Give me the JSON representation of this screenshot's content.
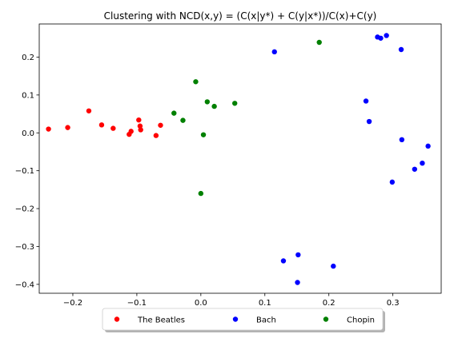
{
  "chart_data": {
    "type": "scatter",
    "title": "Clustering with NCD(x,y) = (C(x|y*) + C(y|x*))/C(x)+C(y)",
    "xlabel": "",
    "ylabel": "",
    "xlim": [
      -0.2525,
      0.3755
    ],
    "ylim": [
      -0.4235,
      0.2875
    ],
    "xticks": [
      -0.2,
      -0.1,
      0.0,
      0.1,
      0.2,
      0.3
    ],
    "xtick_labels": [
      "−0.2",
      "−0.1",
      "0.0",
      "0.1",
      "0.2",
      "0.3"
    ],
    "yticks": [
      -0.4,
      -0.3,
      -0.2,
      -0.1,
      0.0,
      0.1,
      0.2
    ],
    "ytick_labels": [
      "−0.4",
      "−0.3",
      "−0.2",
      "−0.1",
      "0.0",
      "0.1",
      "0.2"
    ],
    "grid": false,
    "legend_placement": "bottom-center",
    "series": [
      {
        "name": "The Beatles",
        "color": "#ff0000",
        "points": [
          [
            -0.238,
            0.01
          ],
          [
            -0.208,
            0.014
          ],
          [
            -0.175,
            0.058
          ],
          [
            -0.155,
            0.021
          ],
          [
            -0.137,
            0.012
          ],
          [
            -0.112,
            -0.004
          ],
          [
            -0.109,
            0.004
          ],
          [
            -0.097,
            0.034
          ],
          [
            -0.095,
            0.018
          ],
          [
            -0.094,
            0.008
          ],
          [
            -0.07,
            -0.007
          ],
          [
            -0.063,
            0.02
          ]
        ]
      },
      {
        "name": "Bach",
        "color": "#0000ff",
        "points": [
          [
            0.115,
            0.214
          ],
          [
            0.276,
            0.253
          ],
          [
            0.281,
            0.25
          ],
          [
            0.29,
            0.257
          ],
          [
            0.313,
            0.22
          ],
          [
            0.258,
            0.084
          ],
          [
            0.263,
            0.03
          ],
          [
            0.314,
            -0.018
          ],
          [
            0.355,
            -0.035
          ],
          [
            0.346,
            -0.08
          ],
          [
            0.334,
            -0.096
          ],
          [
            0.299,
            -0.13
          ],
          [
            0.129,
            -0.338
          ],
          [
            0.152,
            -0.322
          ],
          [
            0.207,
            -0.352
          ],
          [
            0.151,
            -0.395
          ]
        ]
      },
      {
        "name": "Chopin",
        "color": "#008000",
        "points": [
          [
            -0.008,
            0.135
          ],
          [
            0.185,
            0.239
          ],
          [
            0.01,
            0.082
          ],
          [
            0.021,
            0.07
          ],
          [
            0.053,
            0.078
          ],
          [
            -0.042,
            0.052
          ],
          [
            -0.028,
            0.033
          ],
          [
            0.004,
            -0.005
          ],
          [
            0.0,
            -0.16
          ]
        ]
      }
    ]
  }
}
